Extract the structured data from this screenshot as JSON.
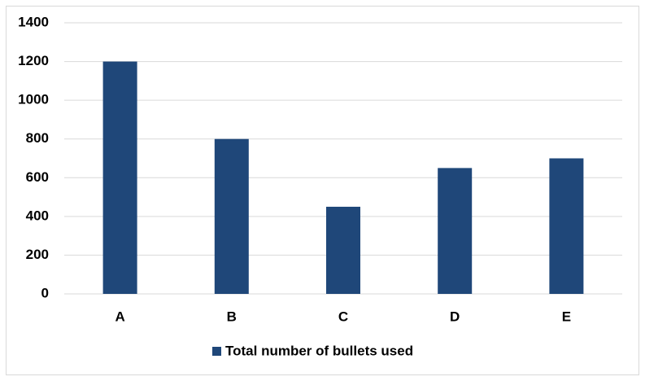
{
  "chart_data": {
    "type": "bar",
    "categories": [
      "A",
      "B",
      "C",
      "D",
      "E"
    ],
    "series": [
      {
        "name": "Total number of bullets used",
        "color": "#1f4779",
        "values": [
          1200,
          800,
          450,
          650,
          700
        ]
      }
    ],
    "ylim": [
      0,
      1400
    ],
    "yticks": [
      0,
      200,
      400,
      600,
      800,
      1000,
      1200,
      1400
    ],
    "grid": true,
    "legend": "bottom"
  }
}
